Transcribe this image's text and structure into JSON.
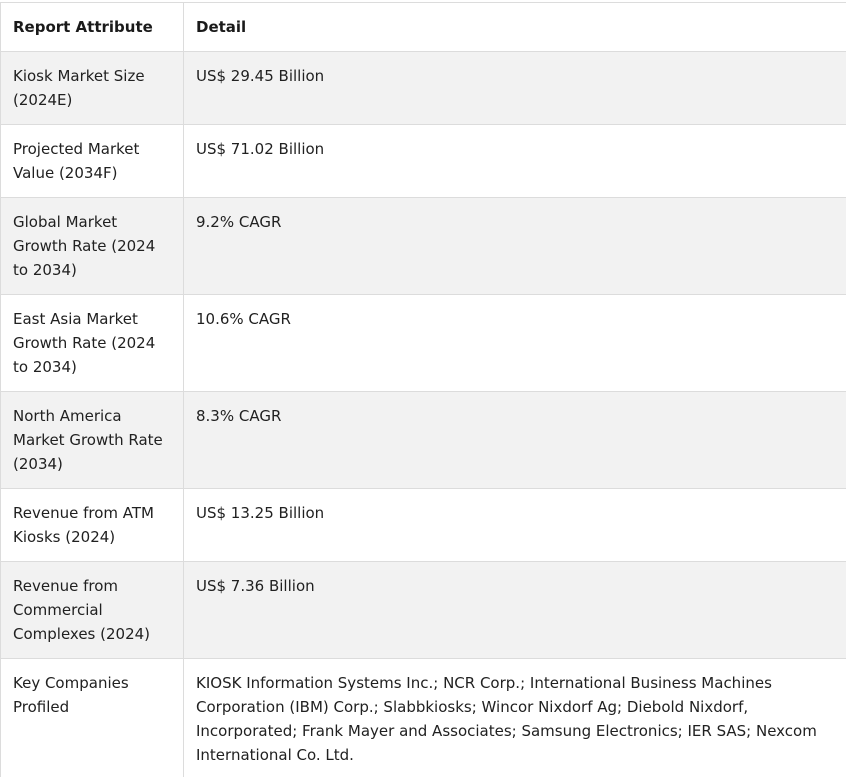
{
  "table": {
    "headers": [
      "Report Attribute",
      "Detail"
    ],
    "rows": [
      {
        "attribute": "Kiosk Market Size (2024E)",
        "detail": "US$ 29.45 Billion"
      },
      {
        "attribute": "Projected Market Value (2034F)",
        "detail": "US$ 71.02 Billion"
      },
      {
        "attribute": "Global Market Growth Rate (2024 to 2034)",
        "detail": "9.2% CAGR"
      },
      {
        "attribute": "East Asia Market Growth Rate (2024 to 2034)",
        "detail": "10.6% CAGR"
      },
      {
        "attribute": "North America Market Growth Rate (2034)",
        "detail": "8.3% CAGR"
      },
      {
        "attribute": "Revenue from ATM Kiosks (2024)",
        "detail": "US$ 13.25 Billion"
      },
      {
        "attribute": "Revenue from Commercial Complexes (2024)",
        "detail": "US$ 7.36 Billion"
      },
      {
        "attribute": "Key Companies Profiled",
        "detail": "KIOSK Information Systems Inc.; NCR Corp.; International Business Machines Corporation (IBM) Corp.; Slabbkiosks; Wincor Nixdorf Ag; Diebold Nixdorf, Incorporated; Frank Mayer and Associates; Samsung Electronics; IER SAS; Nexcom International Co. Ltd."
      }
    ]
  }
}
